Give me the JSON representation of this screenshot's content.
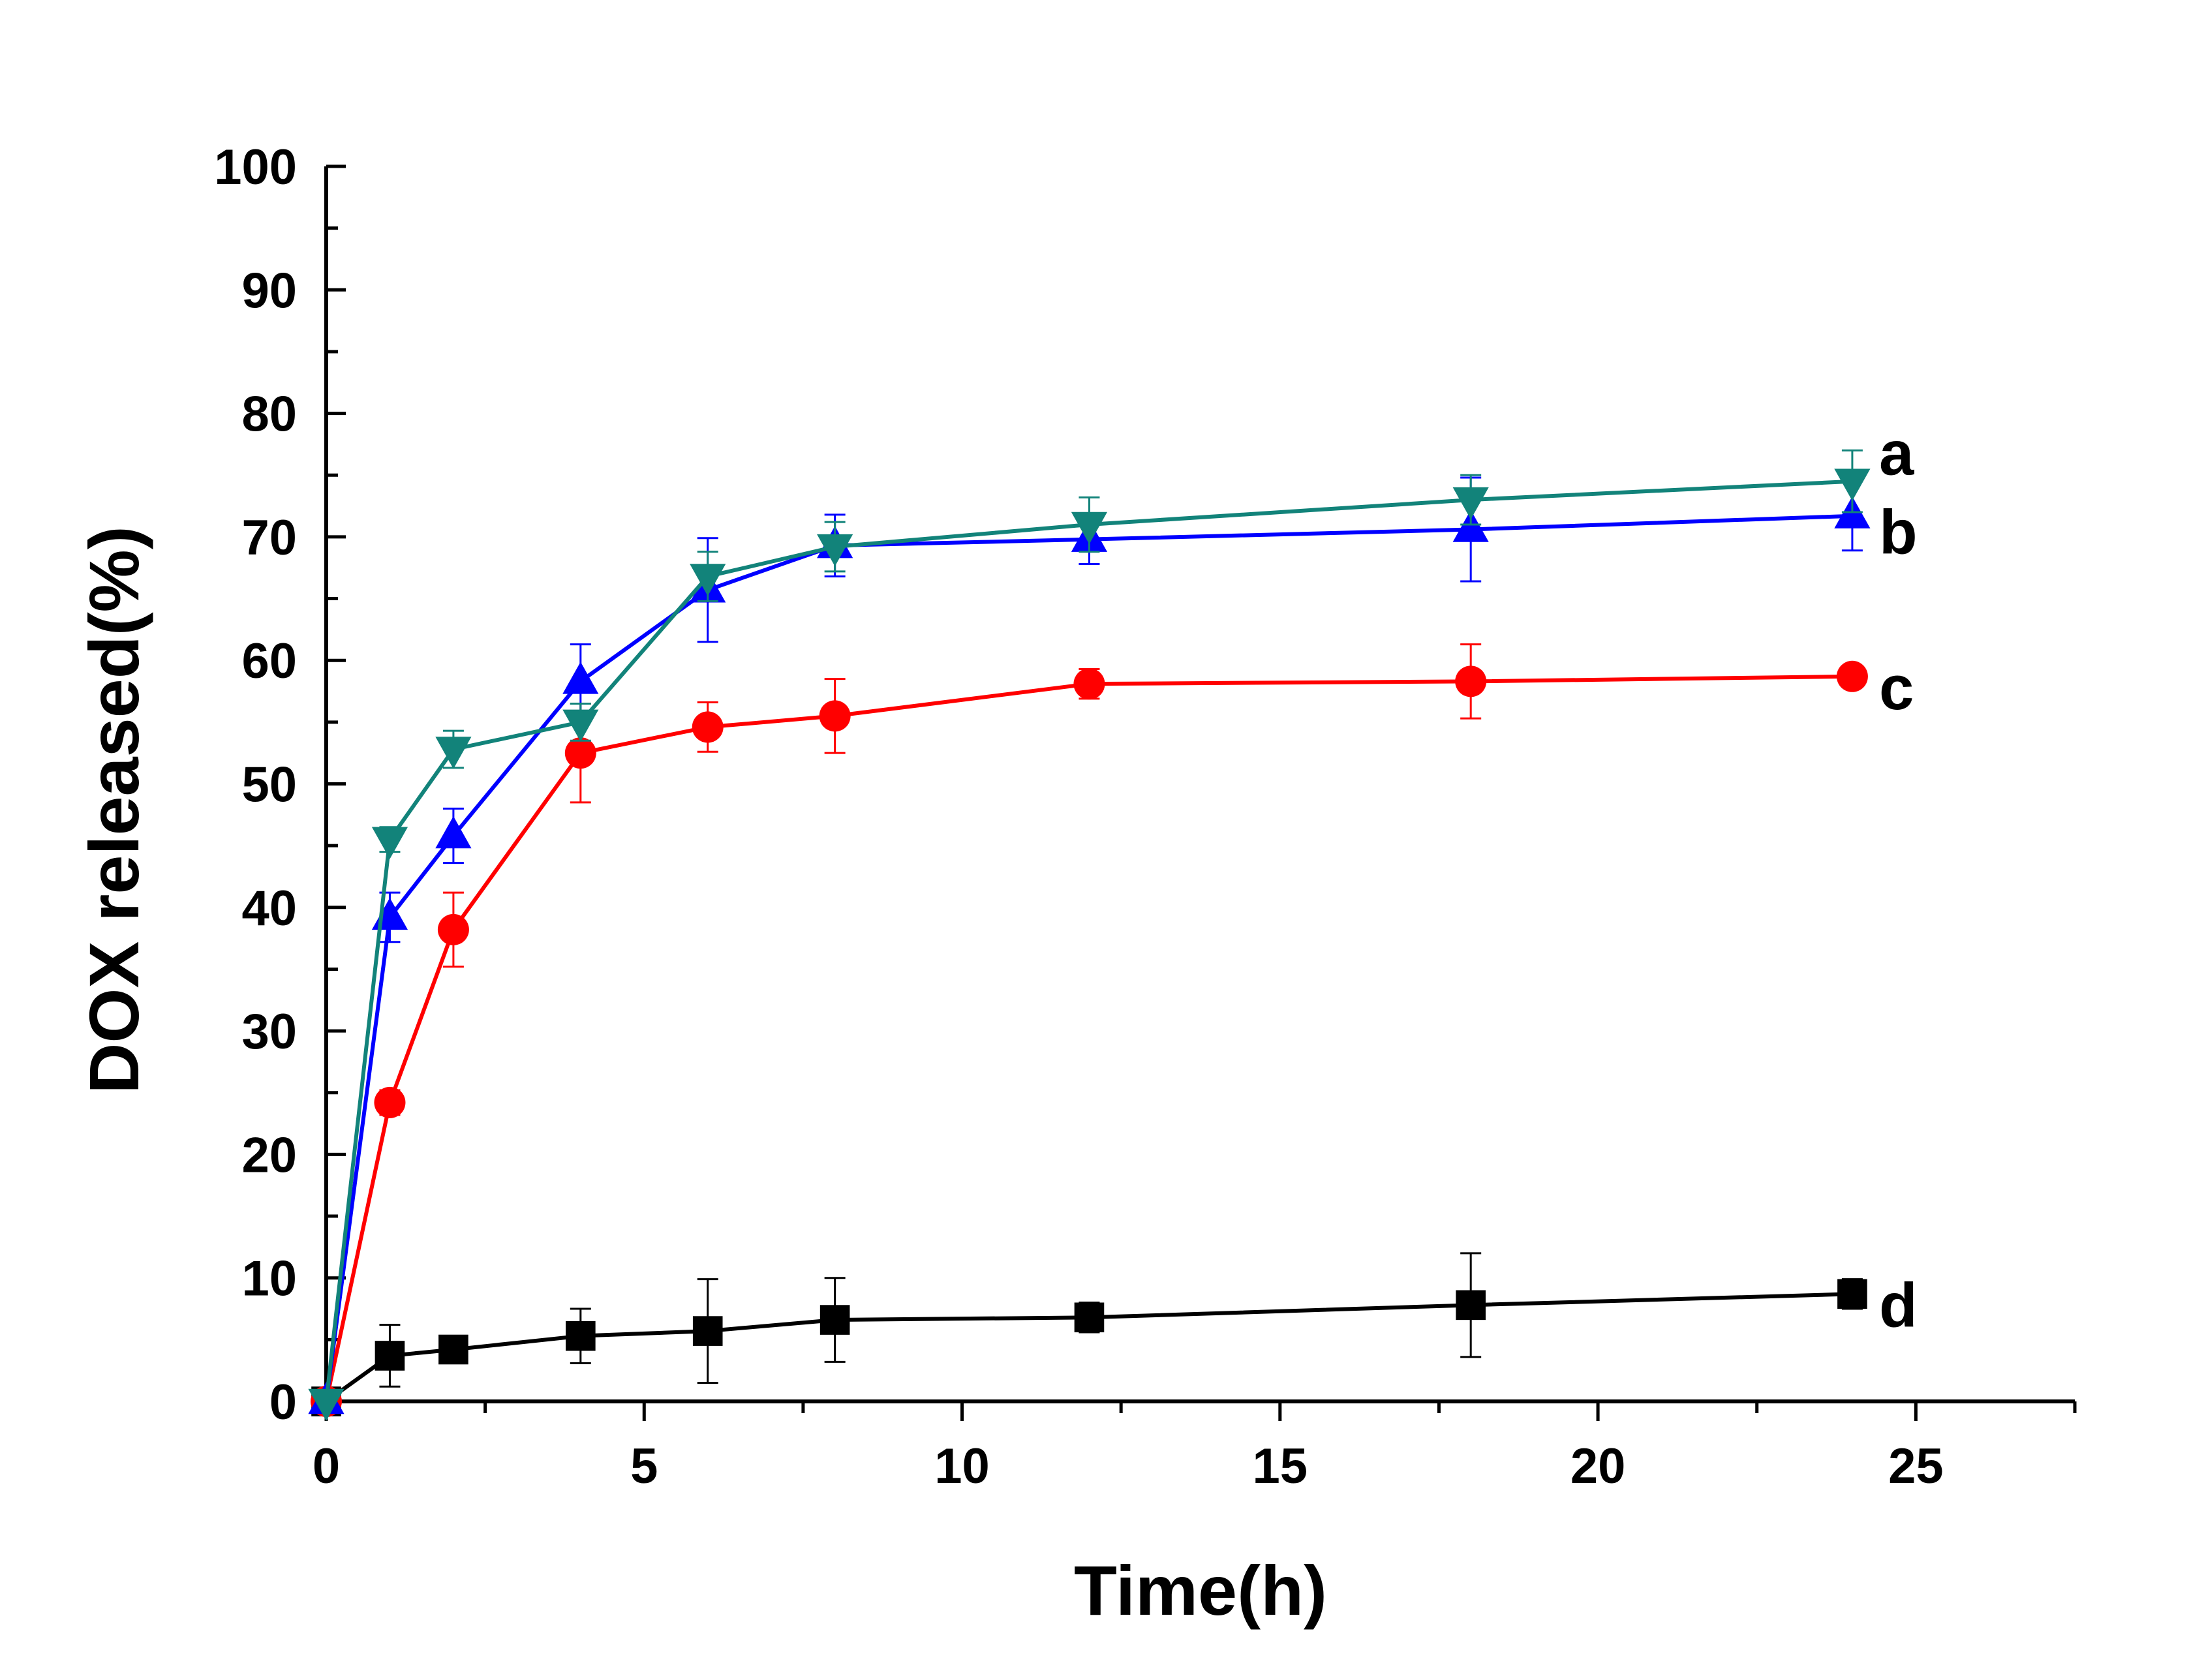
{
  "chart_data": {
    "type": "line",
    "title": "",
    "xlabel": "Time(h)",
    "ylabel": "DOX released(%)",
    "xlim": [
      0,
      27.5
    ],
    "ylim": [
      0,
      100
    ],
    "xticks": [
      0,
      5,
      10,
      15,
      20,
      25
    ],
    "yticks": [
      0,
      10,
      20,
      30,
      40,
      50,
      60,
      70,
      80,
      90,
      100
    ],
    "x": [
      0,
      1,
      2,
      4,
      6,
      8,
      12,
      18,
      24
    ],
    "series": [
      {
        "name": "a",
        "color": "#12837a",
        "marker": "triangle-down",
        "values": [
          0,
          45.5,
          52.8,
          55.0,
          66.8,
          69.2,
          71.0,
          73.0,
          74.5
        ],
        "errors": [
          0,
          1.0,
          1.5,
          1.5,
          2.0,
          2.0,
          2.2,
          2.0,
          2.5
        ]
      },
      {
        "name": "b",
        "color": "#0000ff",
        "marker": "triangle-up",
        "values": [
          0,
          39.2,
          45.8,
          58.3,
          65.7,
          69.3,
          69.8,
          70.6,
          71.7
        ],
        "errors": [
          0,
          2.0,
          2.2,
          3.0,
          4.2,
          2.5,
          2.0,
          4.2,
          2.8
        ]
      },
      {
        "name": "c",
        "color": "#ff0000",
        "marker": "circle",
        "values": [
          0,
          24.2,
          38.2,
          52.5,
          54.6,
          55.5,
          58.1,
          58.3,
          58.7
        ],
        "errors": [
          0,
          1.0,
          3.0,
          4.0,
          2.0,
          3.0,
          1.2,
          3.0,
          0.8
        ]
      },
      {
        "name": "d",
        "color": "#000000",
        "marker": "square",
        "values": [
          0,
          3.7,
          4.2,
          5.3,
          5.7,
          6.6,
          6.8,
          7.8,
          8.7
        ],
        "errors": [
          0,
          2.5,
          1.0,
          2.2,
          4.2,
          3.4,
          1.2,
          4.2,
          1.2
        ]
      }
    ]
  }
}
